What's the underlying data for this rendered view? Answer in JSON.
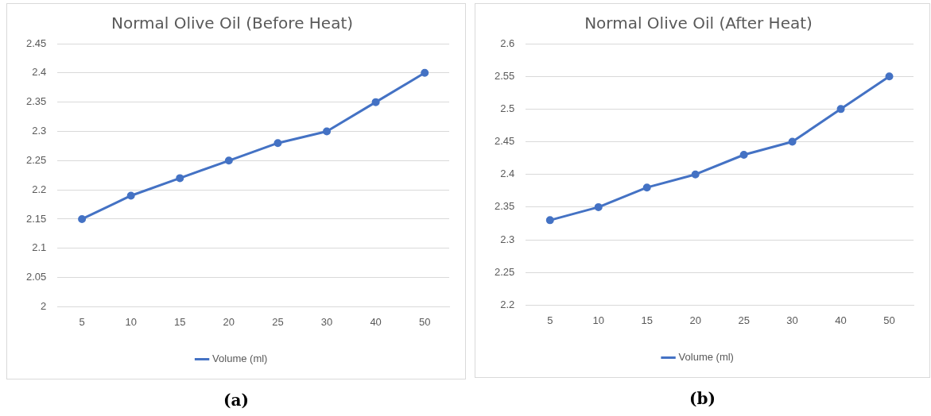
{
  "chart_data": [
    {
      "type": "line",
      "title": "Normal Olive Oil (Before Heat)",
      "categories": [
        "5",
        "10",
        "15",
        "20",
        "25",
        "30",
        "40",
        "50"
      ],
      "series": [
        {
          "name": "Volume (ml)",
          "color": "#4472c4",
          "values": [
            2.15,
            2.19,
            2.22,
            2.25,
            2.28,
            2.3,
            2.35,
            2.4
          ]
        }
      ],
      "ylim": [
        2,
        2.45
      ],
      "yticks": [
        2,
        2.05,
        2.1,
        2.15,
        2.2,
        2.25,
        2.3,
        2.35,
        2.4,
        2.45
      ],
      "grid": "y",
      "legend": "bottom",
      "marker": "circle",
      "annotations": [
        "(a)"
      ]
    },
    {
      "type": "line",
      "title": "Normal Olive Oil (After Heat)",
      "categories": [
        "5",
        "10",
        "15",
        "20",
        "25",
        "30",
        "40",
        "50"
      ],
      "series": [
        {
          "name": "Volume (ml)",
          "color": "#4472c4",
          "values": [
            2.33,
            2.35,
            2.38,
            2.4,
            2.43,
            2.45,
            2.5,
            2.55
          ]
        }
      ],
      "ylim": [
        2.2,
        2.6
      ],
      "yticks": [
        2.2,
        2.25,
        2.3,
        2.35,
        2.4,
        2.45,
        2.5,
        2.55,
        2.6
      ],
      "grid": "y",
      "legend": "bottom",
      "marker": "circle",
      "annotations": [
        "(b)"
      ]
    }
  ]
}
